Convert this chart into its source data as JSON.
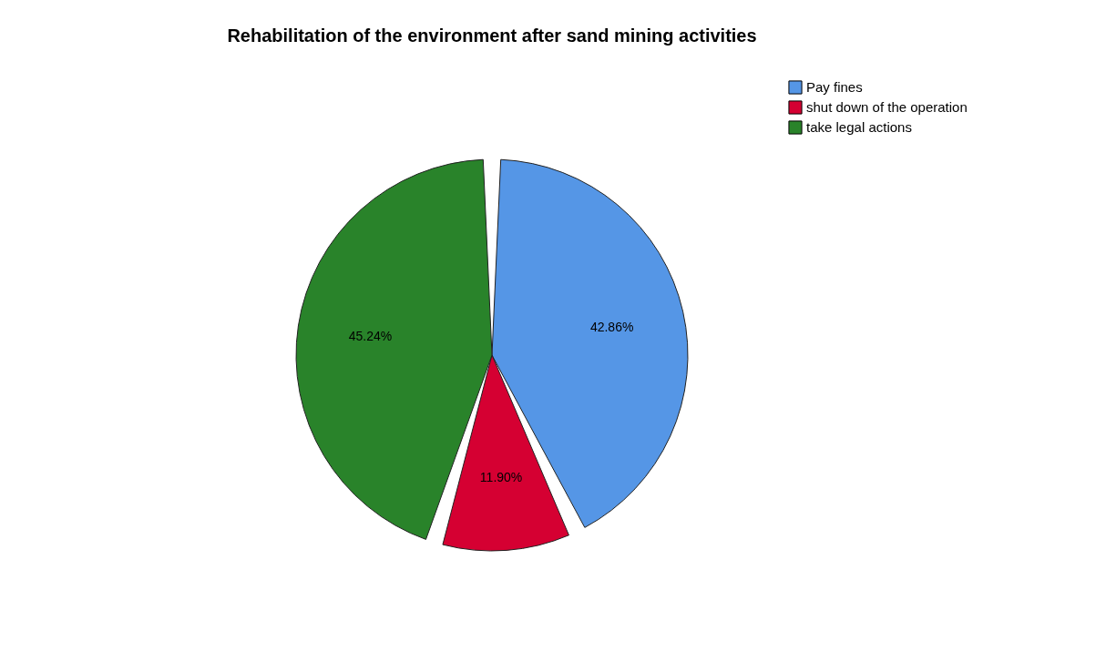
{
  "chart_data": {
    "type": "pie",
    "title": "Rehabilitation of the environment after sand mining activities",
    "categories": [
      "Pay fines",
      "shut down of the operation",
      "take legal actions"
    ],
    "values": [
      42.86,
      11.9,
      45.24
    ],
    "colors": [
      "#5596e6",
      "#d50032",
      "#29832a"
    ],
    "value_labels": [
      "42.86%",
      "11.90%",
      "45.24%"
    ],
    "legend": "top right"
  }
}
